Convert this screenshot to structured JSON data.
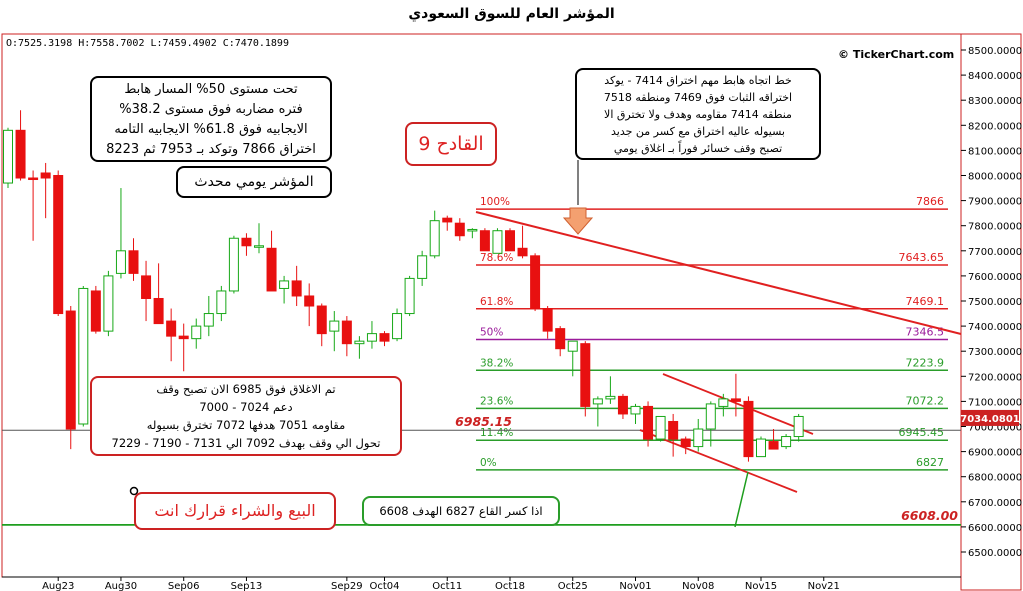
{
  "chart_data": {
    "type": "candlestick",
    "title": "المؤشر العام للسوق السعودي",
    "ohlc_readout": "O:7525.3198  H:7558.7002  L:7459.4902  C:7470.1899",
    "brand": "© TickerChart.com",
    "y_ticks": [
      "8500.0000",
      "8400.0000",
      "8300.0000",
      "8200.0000",
      "8100.0000",
      "8000.0000",
      "7900.0000",
      "7800.0000",
      "7700.0000",
      "7600.0000",
      "7500.0000",
      "7400.0000",
      "7300.0000",
      "7200.0000",
      "7100.0000",
      "7000.0000",
      "6900.0000",
      "6800.0000",
      "6700.0000",
      "6600.0000",
      "6500.0000"
    ],
    "y_tick_values": [
      8500,
      8400,
      8300,
      8200,
      8100,
      8000,
      7900,
      7800,
      7700,
      7600,
      7500,
      7400,
      7300,
      7200,
      7100,
      7000,
      6900,
      6800,
      6700,
      6600,
      6500
    ],
    "ylim": [
      6445,
      8560
    ],
    "x_ticks": [
      {
        "label": "Aug23",
        "i": 4
      },
      {
        "label": "Aug30",
        "i": 9
      },
      {
        "label": "Sep06",
        "i": 14
      },
      {
        "label": "Sep13",
        "i": 19
      },
      {
        "label": "Sep29",
        "i": 27
      },
      {
        "label": "Oct04",
        "i": 30
      },
      {
        "label": "Oct11",
        "i": 35
      },
      {
        "label": "Oct18",
        "i": 40
      },
      {
        "label": "Oct25",
        "i": 45
      },
      {
        "label": "Nov01",
        "i": 50
      },
      {
        "label": "Nov08",
        "i": 55
      },
      {
        "label": "Nov15",
        "i": 60
      },
      {
        "label": "Nov21",
        "i": 65
      }
    ],
    "candles": [
      [
        7970,
        8190,
        7950,
        8180
      ],
      [
        8180,
        8260,
        7980,
        7990
      ],
      [
        7990,
        8020,
        7740,
        7985
      ],
      [
        8010,
        8050,
        7830,
        7990
      ],
      [
        8000,
        8020,
        7440,
        7450
      ],
      [
        7460,
        7480,
        6910,
        6990
      ],
      [
        7010,
        7560,
        7000,
        7550
      ],
      [
        7540,
        7560,
        7370,
        7380
      ],
      [
        7380,
        7620,
        7360,
        7600
      ],
      [
        7610,
        7950,
        7590,
        7700
      ],
      [
        7700,
        7750,
        7580,
        7610
      ],
      [
        7600,
        7660,
        7420,
        7510
      ],
      [
        7510,
        7650,
        7420,
        7410
      ],
      [
        7420,
        7470,
        7260,
        7360
      ],
      [
        7360,
        7410,
        7220,
        7350
      ],
      [
        7350,
        7430,
        7310,
        7400
      ],
      [
        7400,
        7520,
        7360,
        7450
      ],
      [
        7450,
        7560,
        7420,
        7540
      ],
      [
        7540,
        7760,
        7530,
        7750
      ],
      [
        7750,
        7770,
        7680,
        7720
      ],
      [
        7720,
        7810,
        7690,
        7720
      ],
      [
        7710,
        7780,
        7550,
        7540
      ],
      [
        7550,
        7600,
        7490,
        7580
      ],
      [
        7580,
        7640,
        7480,
        7520
      ],
      [
        7520,
        7570,
        7400,
        7480
      ],
      [
        7480,
        7490,
        7320,
        7370
      ],
      [
        7380,
        7460,
        7300,
        7420
      ],
      [
        7420,
        7440,
        7280,
        7330
      ],
      [
        7330,
        7360,
        7270,
        7340
      ],
      [
        7340,
        7420,
        7310,
        7370
      ],
      [
        7370,
        7380,
        7320,
        7340
      ],
      [
        7350,
        7470,
        7340,
        7450
      ],
      [
        7450,
        7600,
        7440,
        7590
      ],
      [
        7590,
        7700,
        7560,
        7680
      ],
      [
        7680,
        7860,
        7670,
        7820
      ],
      [
        7830,
        7840,
        7780,
        7815
      ],
      [
        7810,
        7830,
        7740,
        7760
      ],
      [
        7780,
        7790,
        7750,
        7785
      ],
      [
        7780,
        7790,
        7700,
        7700
      ],
      [
        7690,
        7790,
        7690,
        7780
      ],
      [
        7780,
        7790,
        7700,
        7700
      ],
      [
        7710,
        7800,
        7670,
        7680
      ],
      [
        7680,
        7690,
        7460,
        7470
      ],
      [
        7470,
        7480,
        7350,
        7380
      ],
      [
        7390,
        7400,
        7280,
        7310
      ],
      [
        7300,
        7340,
        7200,
        7340
      ],
      [
        7330,
        7340,
        7040,
        7080
      ],
      [
        7090,
        7120,
        7000,
        7110
      ],
      [
        7110,
        7200,
        7090,
        7120
      ],
      [
        7120,
        7130,
        7030,
        7050
      ],
      [
        7050,
        7090,
        7010,
        7080
      ],
      [
        7080,
        7100,
        6920,
        6950
      ],
      [
        6950,
        7040,
        6940,
        7040
      ],
      [
        7020,
        7050,
        6880,
        6950
      ],
      [
        6950,
        6960,
        6890,
        6920
      ],
      [
        6920,
        7030,
        6900,
        6990
      ],
      [
        6990,
        7100,
        6920,
        7090
      ],
      [
        7080,
        7130,
        7040,
        7110
      ],
      [
        7110,
        7210,
        7040,
        7100
      ],
      [
        7100,
        7120,
        6860,
        6880
      ],
      [
        6880,
        6960,
        6880,
        6950
      ],
      [
        6940,
        6990,
        6910,
        6910
      ],
      [
        6920,
        6970,
        6910,
        6960
      ],
      [
        6960,
        7050,
        6940,
        7040
      ]
    ],
    "fib_levels": [
      {
        "pct": "100%",
        "label": "7866",
        "value": 7866,
        "color": "#e02020"
      },
      {
        "pct": "78.6%",
        "label": "7643.65",
        "value": 7643.65,
        "color": "#e02020"
      },
      {
        "pct": "61.8%",
        "label": "7469.1",
        "value": 7469.1,
        "color": "#e02020"
      },
      {
        "pct": "50%",
        "label": "7346.5",
        "value": 7346.5,
        "color": "#9b1b9b"
      },
      {
        "pct": "38.2%",
        "label": "7223.9",
        "value": 7223.9,
        "color": "#2a9d2a"
      },
      {
        "pct": "23.6%",
        "label": "7072.2",
        "value": 7072.2,
        "color": "#2a9d2a"
      },
      {
        "pct": "11.4%",
        "label": "6945.45",
        "value": 6945.45,
        "color": "#2a9d2a"
      },
      {
        "pct": "0%",
        "label": "6827",
        "value": 6827,
        "color": "#2a9d2a"
      }
    ],
    "annotations": {
      "price_6985": "6985.15",
      "price_6608": "6608.00",
      "current_price": "7034.0801"
    }
  },
  "boxes": {
    "top_left": "تحت مستوى 50% المسار هابط\nفتره مضاربه فوق مستوى 38.2%\nالايجابيه فوق 61.8% الايجابيه التامه\nاختراق 7866 وتوكد بـ 7953 ثم 8223",
    "daily_update": "المؤشر يومي محدث",
    "qadeh": "القادح 9",
    "top_right": "خط اتجاه هابط مهم اختراق 7414 - يوكد\nاختراقه الثبات فوق 7469 ومنطقه 7518\nمنطقه 7414 مقاومه وهدف ولا تخترق الا\nبسيوله عاليه اختراق مع كسر من جديد\nتصبح وقف خسائر فوراً بـ اغلاق يومي",
    "bottom_left": "تم الاغلاق فوق 6985 الان تصبح وقف\nدعم 7024 - 7000\nمقاومه 7051 هدفها 7072 تخترق بسيوله\nتحول الي وقف بهدف 7092 الي 7131 - 7190 - 7229",
    "buy_sell": "البيع والشراء قرارك انت",
    "break_target": "اذا كسر القاع 6827 الهدف 6608"
  }
}
